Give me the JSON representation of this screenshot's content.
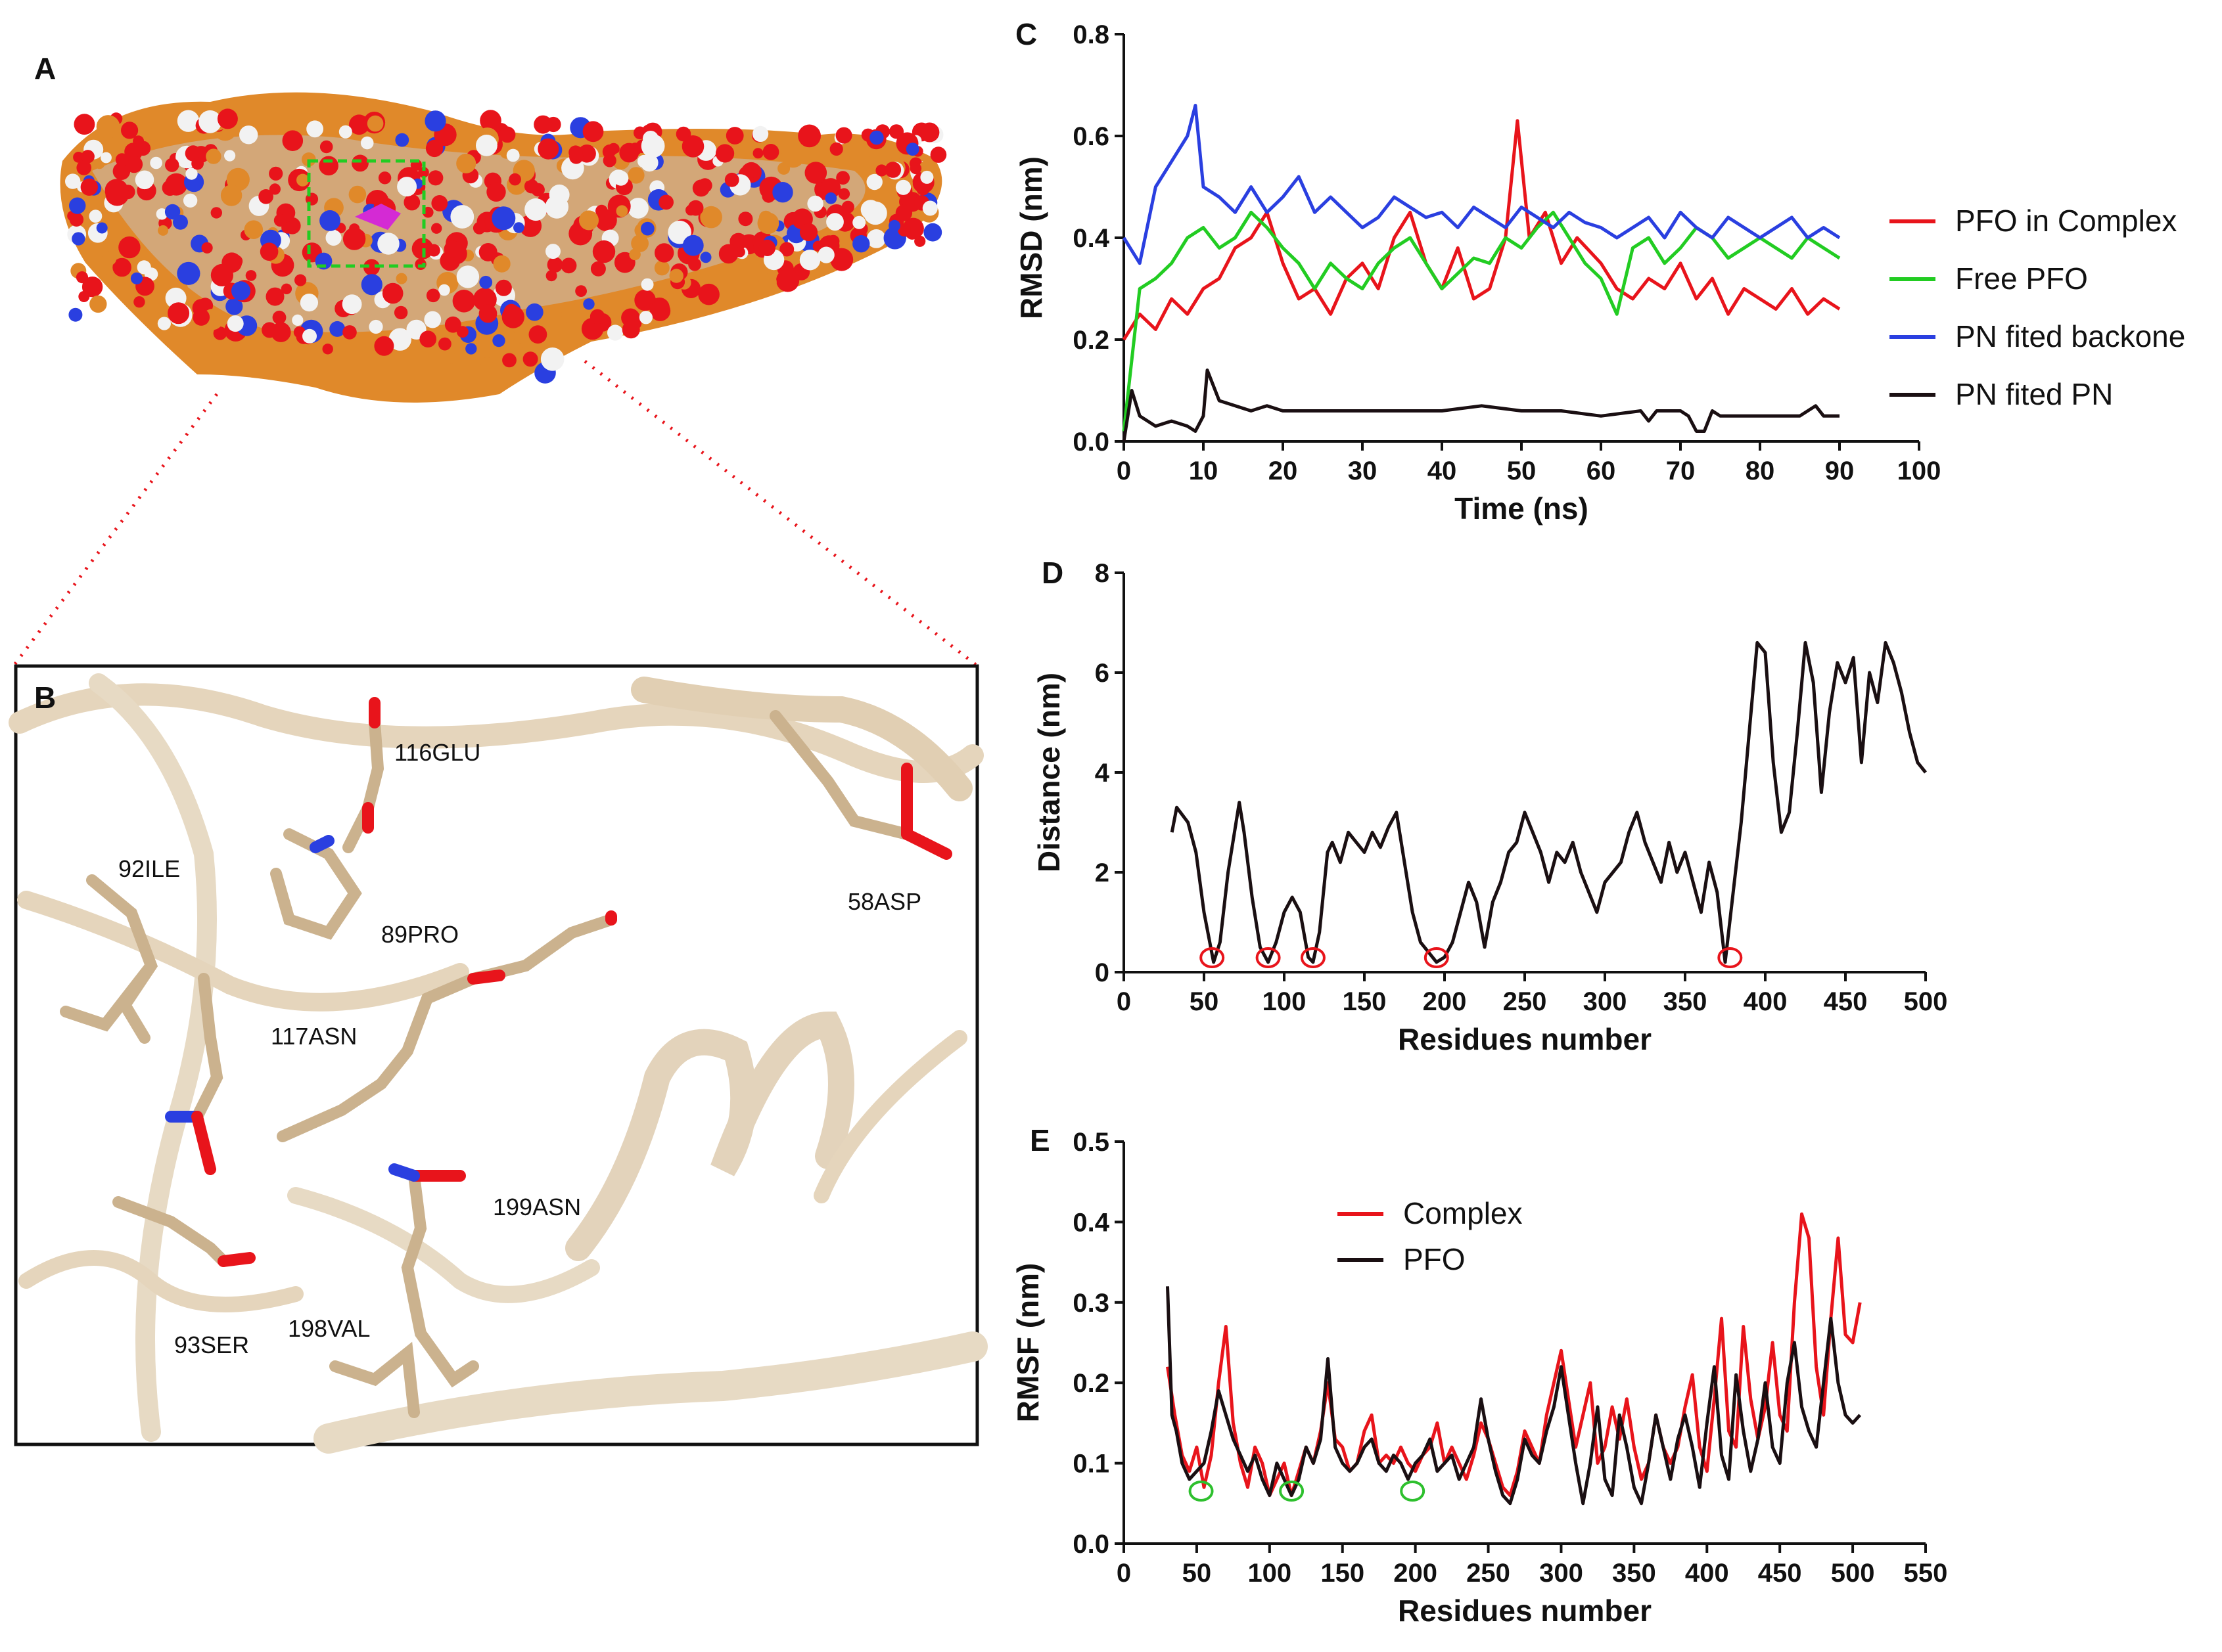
{
  "panels": {
    "A": "A",
    "B": "B",
    "C": "C",
    "D": "D",
    "E": "E"
  },
  "residue_labels": [
    {
      "id": "116glu",
      "text": "116GLU"
    },
    {
      "id": "92ile",
      "text": "92ILE"
    },
    {
      "id": "89pro",
      "text": "89PRO"
    },
    {
      "id": "58asp",
      "text": "58ASP"
    },
    {
      "id": "117asn",
      "text": "117ASN"
    },
    {
      "id": "199asn",
      "text": "199ASN"
    },
    {
      "id": "93ser",
      "text": "93SER"
    },
    {
      "id": "198val",
      "text": "198VAL"
    }
  ],
  "colors": {
    "red": "#e8141b",
    "green": "#22cc22",
    "blue": "#2a3fe0",
    "black": "#1a0f12",
    "circle_red": "#e8141b",
    "circle_green": "#2ec02e"
  },
  "chart_data": [
    {
      "id": "C",
      "type": "line",
      "xlabel": "Time (ns)",
      "ylabel": "RMSD (nm)",
      "xlim": [
        0,
        100
      ],
      "ylim": [
        0,
        0.8
      ],
      "xticks": [
        "0",
        "10",
        "20",
        "30",
        "40",
        "50",
        "60",
        "70",
        "80",
        "90",
        "100"
      ],
      "yticks": [
        "0.0",
        "0.2",
        "0.4",
        "0.6",
        "0.8"
      ],
      "legend_position": "right",
      "series": [
        {
          "name": "PFO in Complex",
          "color": "#e8141b",
          "x": [
            0,
            2,
            4,
            6,
            8,
            10,
            12,
            14,
            16,
            18,
            20,
            22,
            24,
            26,
            28,
            30,
            32,
            34,
            36,
            38,
            40,
            42,
            44,
            46,
            48,
            49.5,
            51,
            53,
            55,
            57,
            60,
            62,
            64,
            66,
            68,
            70,
            72,
            74,
            76,
            78,
            80,
            82,
            84,
            86,
            88,
            90
          ],
          "y": [
            0.2,
            0.25,
            0.22,
            0.28,
            0.25,
            0.3,
            0.32,
            0.38,
            0.4,
            0.45,
            0.35,
            0.28,
            0.3,
            0.25,
            0.32,
            0.35,
            0.3,
            0.4,
            0.45,
            0.35,
            0.3,
            0.38,
            0.28,
            0.3,
            0.4,
            0.63,
            0.4,
            0.45,
            0.35,
            0.4,
            0.35,
            0.3,
            0.28,
            0.32,
            0.3,
            0.35,
            0.28,
            0.32,
            0.25,
            0.3,
            0.28,
            0.26,
            0.3,
            0.25,
            0.28,
            0.26
          ]
        },
        {
          "name": "Free PFO",
          "color": "#22cc22",
          "x": [
            0,
            2,
            4,
            6,
            8,
            10,
            12,
            14,
            16,
            18,
            20,
            22,
            24,
            26,
            28,
            30,
            32,
            34,
            36,
            38,
            40,
            42,
            44,
            46,
            48,
            50,
            52,
            54,
            56,
            58,
            60,
            62,
            64,
            66,
            68,
            70,
            72,
            74,
            76,
            78,
            80,
            82,
            84,
            86,
            88,
            90
          ],
          "y": [
            0.02,
            0.3,
            0.32,
            0.35,
            0.4,
            0.42,
            0.38,
            0.4,
            0.45,
            0.42,
            0.38,
            0.35,
            0.3,
            0.35,
            0.32,
            0.3,
            0.35,
            0.38,
            0.4,
            0.35,
            0.3,
            0.33,
            0.36,
            0.35,
            0.4,
            0.38,
            0.42,
            0.45,
            0.4,
            0.35,
            0.32,
            0.25,
            0.38,
            0.4,
            0.35,
            0.38,
            0.42,
            0.4,
            0.36,
            0.38,
            0.4,
            0.38,
            0.36,
            0.4,
            0.38,
            0.36
          ]
        },
        {
          "name": "PN fited backone",
          "color": "#2a3fe0",
          "x": [
            0,
            2,
            4,
            6,
            8,
            9,
            10,
            12,
            14,
            16,
            18,
            20,
            22,
            24,
            26,
            28,
            30,
            32,
            34,
            36,
            38,
            40,
            42,
            44,
            46,
            48,
            50,
            52,
            54,
            56,
            58,
            60,
            62,
            64,
            66,
            68,
            70,
            72,
            74,
            76,
            78,
            80,
            82,
            84,
            86,
            88,
            90
          ],
          "y": [
            0.4,
            0.35,
            0.5,
            0.55,
            0.6,
            0.66,
            0.5,
            0.48,
            0.45,
            0.5,
            0.45,
            0.48,
            0.52,
            0.45,
            0.48,
            0.45,
            0.42,
            0.44,
            0.48,
            0.46,
            0.44,
            0.45,
            0.42,
            0.46,
            0.44,
            0.42,
            0.46,
            0.44,
            0.42,
            0.45,
            0.43,
            0.42,
            0.4,
            0.42,
            0.44,
            0.4,
            0.45,
            0.42,
            0.4,
            0.44,
            0.42,
            0.4,
            0.42,
            0.44,
            0.4,
            0.42,
            0.4
          ]
        },
        {
          "name": "PN fited PN",
          "color": "#1a0f12",
          "x": [
            0,
            1,
            2,
            4,
            6,
            8,
            9,
            10,
            10.5,
            12,
            14,
            16,
            18,
            20,
            25,
            30,
            35,
            40,
            45,
            50,
            55,
            60,
            65,
            66,
            67,
            70,
            71,
            72,
            73,
            74,
            75,
            80,
            85,
            87,
            88,
            90
          ],
          "y": [
            0.0,
            0.1,
            0.05,
            0.03,
            0.04,
            0.03,
            0.02,
            0.05,
            0.14,
            0.08,
            0.07,
            0.06,
            0.07,
            0.06,
            0.06,
            0.06,
            0.06,
            0.06,
            0.07,
            0.06,
            0.06,
            0.05,
            0.06,
            0.04,
            0.06,
            0.06,
            0.05,
            0.02,
            0.02,
            0.06,
            0.05,
            0.05,
            0.05,
            0.07,
            0.05,
            0.05
          ]
        }
      ]
    },
    {
      "id": "D",
      "type": "line",
      "xlabel": "Residues number",
      "ylabel": "Distance (nm)",
      "xlim": [
        0,
        500
      ],
      "ylim": [
        0,
        8
      ],
      "xticks": [
        "0",
        "50",
        "100",
        "150",
        "200",
        "250",
        "300",
        "350",
        "400",
        "450",
        "500"
      ],
      "yticks": [
        "0",
        "2",
        "4",
        "6",
        "8"
      ],
      "series": [
        {
          "name": "Distance",
          "color": "#1a0f12",
          "x": [
            30,
            33,
            40,
            45,
            50,
            56,
            60,
            65,
            72,
            75,
            80,
            85,
            90,
            95,
            100,
            105,
            110,
            115,
            118,
            122,
            127,
            130,
            135,
            140,
            145,
            150,
            155,
            160,
            165,
            170,
            175,
            180,
            185,
            190,
            195,
            200,
            205,
            210,
            215,
            220,
            225,
            230,
            235,
            240,
            245,
            250,
            255,
            260,
            265,
            270,
            275,
            280,
            285,
            290,
            295,
            300,
            305,
            310,
            315,
            320,
            325,
            330,
            335,
            340,
            345,
            350,
            355,
            360,
            365,
            370,
            375,
            380,
            385,
            390,
            395,
            400,
            405,
            410,
            415,
            420,
            425,
            430,
            435,
            440,
            445,
            450,
            455,
            460,
            465,
            470,
            475,
            480,
            485,
            490,
            495,
            500
          ],
          "y": [
            2.8,
            3.3,
            3.0,
            2.4,
            1.2,
            0.2,
            0.6,
            2.0,
            3.4,
            2.8,
            1.5,
            0.5,
            0.2,
            0.6,
            1.2,
            1.5,
            1.2,
            0.3,
            0.2,
            0.8,
            2.4,
            2.6,
            2.2,
            2.8,
            2.6,
            2.4,
            2.8,
            2.5,
            2.9,
            3.2,
            2.2,
            1.2,
            0.6,
            0.4,
            0.2,
            0.3,
            0.6,
            1.2,
            1.8,
            1.4,
            0.5,
            1.4,
            1.8,
            2.4,
            2.6,
            3.2,
            2.8,
            2.4,
            1.8,
            2.4,
            2.2,
            2.6,
            2.0,
            1.6,
            1.2,
            1.8,
            2.0,
            2.2,
            2.8,
            3.2,
            2.6,
            2.2,
            1.8,
            2.6,
            2.0,
            2.4,
            1.8,
            1.2,
            2.2,
            1.6,
            0.2,
            1.6,
            3.0,
            4.8,
            6.6,
            6.4,
            4.2,
            2.8,
            3.2,
            4.8,
            6.6,
            5.8,
            3.6,
            5.2,
            6.2,
            5.8,
            6.3,
            4.2,
            6.0,
            5.4,
            6.6,
            6.2,
            5.6,
            4.8,
            4.2,
            4.0
          ]
        }
      ],
      "markers": [
        55,
        90,
        118,
        195,
        378
      ]
    },
    {
      "id": "E",
      "type": "line",
      "xlabel": "Residues number",
      "ylabel": "RMSF (nm)",
      "xlim": [
        0,
        550
      ],
      "ylim": [
        0,
        0.5
      ],
      "xticks": [
        "0",
        "50",
        "100",
        "150",
        "200",
        "250",
        "300",
        "350",
        "400",
        "450",
        "500",
        "550"
      ],
      "yticks": [
        "0.0",
        "0.1",
        "0.2",
        "0.3",
        "0.4",
        "0.5"
      ],
      "legend_position": "top-left",
      "series": [
        {
          "name": "Complex",
          "color": "#e8141b",
          "x": [
            30,
            35,
            40,
            45,
            50,
            55,
            60,
            65,
            70,
            75,
            80,
            85,
            90,
            95,
            100,
            105,
            110,
            115,
            120,
            125,
            130,
            135,
            140,
            145,
            150,
            155,
            160,
            165,
            170,
            175,
            180,
            185,
            190,
            195,
            200,
            205,
            210,
            215,
            220,
            225,
            230,
            235,
            240,
            245,
            250,
            255,
            260,
            265,
            270,
            275,
            280,
            285,
            290,
            295,
            300,
            305,
            310,
            315,
            320,
            325,
            330,
            335,
            340,
            345,
            350,
            355,
            360,
            365,
            370,
            375,
            380,
            385,
            390,
            395,
            400,
            405,
            410,
            415,
            420,
            425,
            430,
            435,
            440,
            445,
            450,
            455,
            460,
            465,
            470,
            475,
            480,
            485,
            490,
            495,
            500,
            505
          ],
          "y": [
            0.22,
            0.16,
            0.11,
            0.09,
            0.12,
            0.07,
            0.11,
            0.2,
            0.27,
            0.15,
            0.1,
            0.07,
            0.12,
            0.1,
            0.06,
            0.08,
            0.1,
            0.06,
            0.09,
            0.12,
            0.1,
            0.14,
            0.2,
            0.13,
            0.12,
            0.09,
            0.1,
            0.14,
            0.16,
            0.1,
            0.11,
            0.1,
            0.12,
            0.1,
            0.09,
            0.11,
            0.12,
            0.15,
            0.1,
            0.12,
            0.1,
            0.08,
            0.11,
            0.15,
            0.13,
            0.1,
            0.07,
            0.06,
            0.09,
            0.14,
            0.12,
            0.1,
            0.16,
            0.2,
            0.24,
            0.18,
            0.12,
            0.16,
            0.2,
            0.1,
            0.12,
            0.17,
            0.13,
            0.18,
            0.12,
            0.08,
            0.1,
            0.16,
            0.12,
            0.1,
            0.12,
            0.17,
            0.21,
            0.12,
            0.09,
            0.18,
            0.28,
            0.14,
            0.12,
            0.27,
            0.18,
            0.13,
            0.17,
            0.25,
            0.16,
            0.14,
            0.3,
            0.41,
            0.38,
            0.22,
            0.16,
            0.28,
            0.38,
            0.26,
            0.25,
            0.3
          ]
        },
        {
          "name": "PFO",
          "color": "#1a0f12",
          "x": [
            30,
            33,
            36,
            40,
            45,
            50,
            55,
            60,
            65,
            70,
            75,
            80,
            85,
            90,
            95,
            100,
            105,
            110,
            115,
            120,
            125,
            130,
            135,
            140,
            145,
            150,
            155,
            160,
            165,
            170,
            175,
            180,
            185,
            190,
            195,
            200,
            205,
            210,
            215,
            220,
            225,
            230,
            235,
            240,
            245,
            250,
            255,
            260,
            265,
            270,
            275,
            280,
            285,
            290,
            295,
            300,
            305,
            310,
            315,
            320,
            325,
            330,
            335,
            340,
            345,
            350,
            355,
            360,
            365,
            370,
            375,
            380,
            385,
            390,
            395,
            400,
            405,
            410,
            415,
            420,
            425,
            430,
            435,
            440,
            445,
            450,
            455,
            460,
            465,
            470,
            475,
            480,
            485,
            490,
            495,
            500,
            505
          ],
          "y": [
            0.32,
            0.16,
            0.14,
            0.1,
            0.08,
            0.09,
            0.1,
            0.14,
            0.19,
            0.16,
            0.13,
            0.11,
            0.09,
            0.11,
            0.08,
            0.06,
            0.1,
            0.08,
            0.06,
            0.08,
            0.12,
            0.1,
            0.13,
            0.23,
            0.12,
            0.1,
            0.09,
            0.1,
            0.12,
            0.13,
            0.1,
            0.09,
            0.11,
            0.1,
            0.08,
            0.1,
            0.11,
            0.13,
            0.09,
            0.1,
            0.11,
            0.08,
            0.1,
            0.12,
            0.18,
            0.13,
            0.09,
            0.06,
            0.05,
            0.08,
            0.13,
            0.11,
            0.1,
            0.14,
            0.17,
            0.22,
            0.16,
            0.1,
            0.05,
            0.1,
            0.17,
            0.08,
            0.06,
            0.16,
            0.12,
            0.07,
            0.05,
            0.1,
            0.16,
            0.12,
            0.08,
            0.13,
            0.16,
            0.12,
            0.07,
            0.15,
            0.22,
            0.11,
            0.08,
            0.21,
            0.14,
            0.09,
            0.13,
            0.2,
            0.12,
            0.1,
            0.2,
            0.25,
            0.17,
            0.14,
            0.12,
            0.2,
            0.28,
            0.2,
            0.16,
            0.15,
            0.16
          ]
        }
      ],
      "markers": [
        53,
        115,
        198
      ]
    }
  ]
}
